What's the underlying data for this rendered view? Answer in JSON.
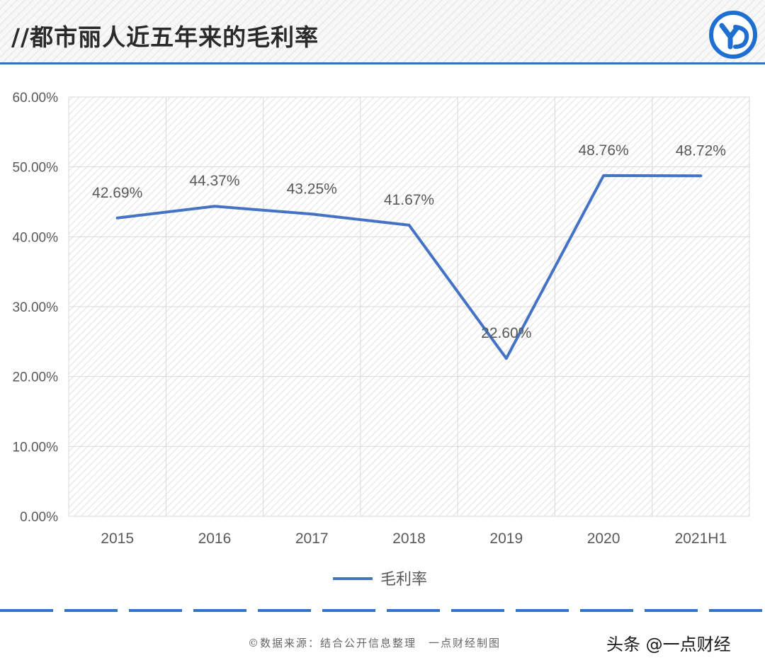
{
  "header": {
    "title": "//都市丽人近五年来的毛利率"
  },
  "footer": {
    "source": "©数据来源：结合公开信息整理　一点财经制图",
    "watermark": "头条 @一点财经"
  },
  "colors": {
    "line": "#4472c4",
    "accent": "#2e75c8",
    "grid": "#d9d9d9",
    "text": "#595959"
  },
  "chart_data": {
    "type": "line",
    "title": "",
    "categories": [
      "2015",
      "2016",
      "2017",
      "2018",
      "2019",
      "2020",
      "2021H1"
    ],
    "series": [
      {
        "name": "毛利率",
        "values": [
          42.69,
          44.37,
          43.25,
          41.67,
          22.6,
          48.76,
          48.72
        ]
      }
    ],
    "data_labels": [
      "42.69%",
      "44.37%",
      "43.25%",
      "41.67%",
      "22.60%",
      "48.76%",
      "48.72%"
    ],
    "y_ticks": [
      "0.00%",
      "10.00%",
      "20.00%",
      "30.00%",
      "40.00%",
      "50.00%",
      "60.00%"
    ],
    "ylim": [
      0,
      60
    ],
    "grid": true,
    "legend": "bottom-center"
  }
}
